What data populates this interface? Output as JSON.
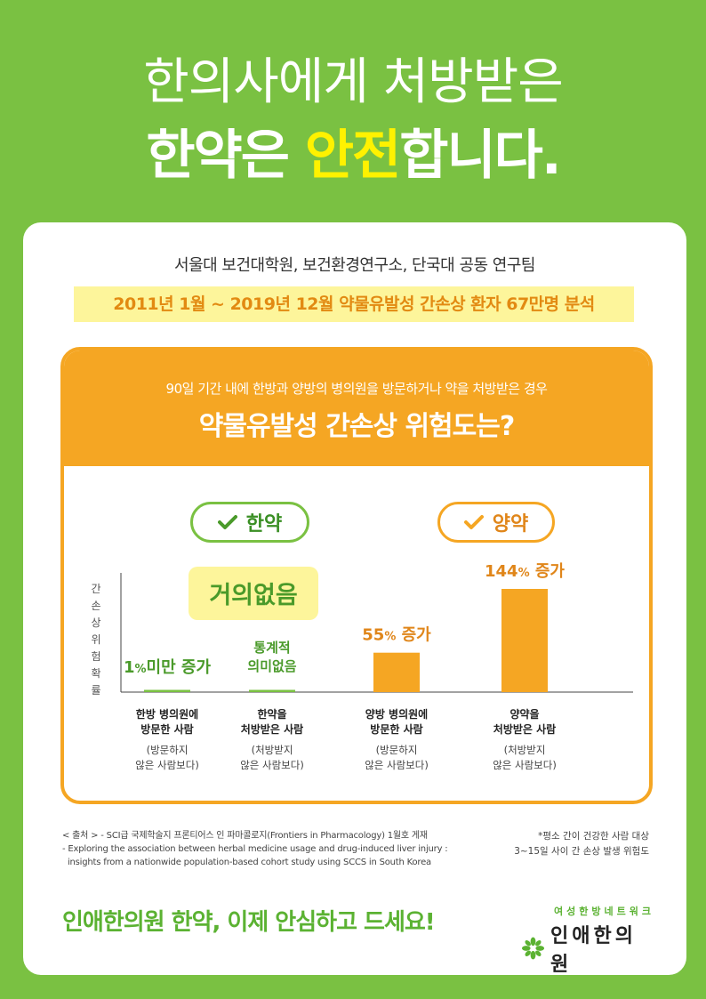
{
  "headline": {
    "line1": "한의사에게 처방받은",
    "line2_pre": "한약은 ",
    "line2_highlight": "안전",
    "line2_post": "합니다."
  },
  "research": {
    "team": "서울대 보건대학원, 보건환경연구소, 단국대 공동 연구팀",
    "period": "2011년 1월 ~ 2019년 12월 약물유발성 간손상 환자 67만명 분석"
  },
  "panel": {
    "subtitle": "90일 기간 내에 한방과 양방의 병의원을 방문하거나 약을 처방받은 경우",
    "title": "약물유발성 간손상 위험도는?",
    "tag_left": "한약",
    "tag_right": "양약",
    "no_risk_label": "거의없음"
  },
  "chart_data": {
    "type": "bar",
    "ylabel": "간손상위험확률",
    "categories": [
      {
        "line1": "한방 병의원에",
        "line2": "방문한 사람",
        "note1": "(방문하지",
        "note2": "않은 사람보다)"
      },
      {
        "line1": "한약을",
        "line2": "처방받은 사람",
        "note1": "(처방받지",
        "note2": "않은 사람보다)"
      },
      {
        "line1": "양방 병의원에",
        "line2": "방문한 사람",
        "note1": "(방문하지",
        "note2": "않은 사람보다)"
      },
      {
        "line1": "양약을",
        "line2": "처방받은 사람",
        "note1": "(처방받지",
        "note2": "않은 사람보다)"
      }
    ],
    "values": [
      1,
      0,
      55,
      144
    ],
    "value_labels": [
      {
        "parts": [
          "1",
          "%",
          "미만 증가"
        ]
      },
      {
        "parts": [
          "통계적",
          "의미없음"
        ]
      },
      {
        "parts": [
          "55",
          "%",
          " 증가"
        ]
      },
      {
        "parts": [
          "144",
          "%",
          " 증가"
        ]
      }
    ],
    "colors": {
      "herbal": "#7ac142",
      "western": "#f5a623"
    }
  },
  "footer": {
    "source_lines": [
      "< 출처 > - SCI급 국제학술지 프론티어스 인 파마콜로지(Frontiers in Pharmacology) 1월호 게재",
      "- Exploring the association between herbal medicine usage and drug-induced liver injury :",
      "  insights from a nationwide population-based cohort study using SCCS in South Korea"
    ],
    "note_lines": [
      "*평소 간이 건강한 사람 대상",
      "3~15일 사이 간 손상 발생 위험도"
    ],
    "slogan": "인애한의원 한약, 이제 안심하고 드세요!",
    "brand_sub": "여성한방네트워크",
    "brand_name": "인애한의원"
  }
}
